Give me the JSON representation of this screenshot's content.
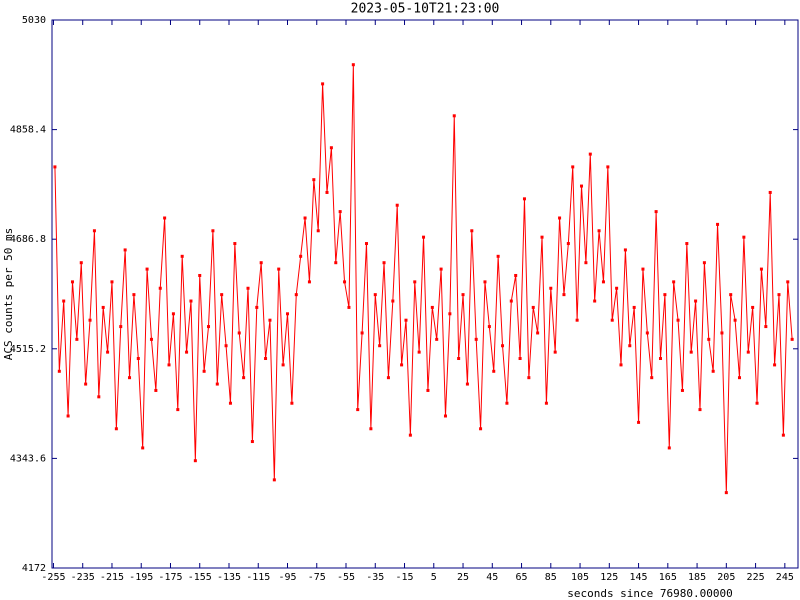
{
  "chart_data": {
    "type": "line",
    "title": "2023-05-10T21:23:00",
    "x_label": "seconds since 76980.00000",
    "y_label": "ACS counts per 50 ms",
    "xlim": [
      -256,
      254
    ],
    "ylim": [
      4172,
      5030
    ],
    "xticks": [
      -255,
      -235,
      -215,
      -195,
      -175,
      -155,
      -135,
      -115,
      -95,
      -75,
      -55,
      -35,
      -15,
      5,
      25,
      45,
      65,
      85,
      105,
      125,
      145,
      165,
      185,
      205,
      225,
      245
    ],
    "yticks": [
      4172,
      4343.6,
      4515.2,
      4686.8,
      4858.4,
      5030
    ],
    "series": [
      {
        "color": "#ff0000",
        "x": [
          -254,
          -251,
          -248,
          -245,
          -242,
          -239,
          -236,
          -233,
          -230,
          -227,
          -224,
          -221,
          -218,
          -215,
          -212,
          -209,
          -206,
          -203,
          -200,
          -197,
          -194,
          -191,
          -188,
          -185,
          -182,
          -179,
          -176,
          -173,
          -170,
          -167,
          -164,
          -161,
          -158,
          -155,
          -152,
          -149,
          -146,
          -143,
          -140,
          -137,
          -134,
          -131,
          -128,
          -125,
          -122,
          -119,
          -116,
          -113,
          -110,
          -107,
          -104,
          -101,
          -98,
          -95,
          -92,
          -89,
          -86,
          -83,
          -80,
          -77,
          -74,
          -71,
          -68,
          -65,
          -62,
          -59,
          -56,
          -53,
          -50,
          -47,
          -44,
          -41,
          -38,
          -35,
          -32,
          -29,
          -26,
          -23,
          -20,
          -17,
          -14,
          -11,
          -8,
          -5,
          -2,
          1,
          4,
          7,
          10,
          13,
          16,
          19,
          22,
          25,
          28,
          31,
          34,
          37,
          40,
          43,
          46,
          49,
          52,
          55,
          58,
          61,
          64,
          67,
          70,
          73,
          76,
          79,
          82,
          85,
          88,
          91,
          94,
          97,
          100,
          103,
          106,
          109,
          112,
          115,
          118,
          121,
          124,
          127,
          130,
          133,
          136,
          139,
          142,
          145,
          148,
          151,
          154,
          157,
          160,
          163,
          166,
          169,
          172,
          175,
          178,
          181,
          184,
          187,
          190,
          193,
          196,
          199,
          202,
          205,
          208,
          211,
          214,
          217,
          220,
          223,
          226,
          229,
          232,
          235,
          238,
          241,
          244,
          247,
          250
        ],
        "values": [
          4800,
          4480,
          4590,
          4410,
          4620,
          4530,
          4650,
          4460,
          4560,
          4700,
          4440,
          4580,
          4510,
          4620,
          4390,
          4550,
          4670,
          4470,
          4600,
          4500,
          4360,
          4640,
          4530,
          4450,
          4610,
          4720,
          4490,
          4570,
          4420,
          4660,
          4510,
          4590,
          4340,
          4630,
          4480,
          4550,
          4700,
          4460,
          4600,
          4520,
          4430,
          4680,
          4540,
          4470,
          4610,
          4370,
          4580,
          4650,
          4500,
          4560,
          4310,
          4640,
          4490,
          4570,
          4430,
          4600,
          4660,
          4720,
          4620,
          4780,
          4700,
          4930,
          4760,
          4830,
          4650,
          4730,
          4620,
          4580,
          4960,
          4420,
          4540,
          4680,
          4390,
          4600,
          4520,
          4650,
          4470,
          4590,
          4740,
          4490,
          4560,
          4380,
          4620,
          4510,
          4690,
          4450,
          4580,
          4530,
          4640,
          4410,
          4570,
          4880,
          4500,
          4600,
          4460,
          4700,
          4530,
          4390,
          4620,
          4550,
          4480,
          4660,
          4520,
          4430,
          4590,
          4630,
          4500,
          4750,
          4470,
          4580,
          4540,
          4690,
          4430,
          4610,
          4510,
          4720,
          4600,
          4680,
          4800,
          4560,
          4770,
          4650,
          4820,
          4590,
          4700,
          4620,
          4800,
          4560,
          4610,
          4490,
          4670,
          4520,
          4580,
          4400,
          4640,
          4540,
          4470,
          4730,
          4500,
          4600,
          4360,
          4620,
          4560,
          4450,
          4680,
          4510,
          4590,
          4420,
          4650,
          4530,
          4480,
          4710,
          4540,
          4290,
          4600,
          4560,
          4470,
          4690,
          4510,
          4580,
          4430,
          4640,
          4550,
          4760,
          4490,
          4600,
          4380,
          4620,
          4530
        ]
      }
    ]
  }
}
